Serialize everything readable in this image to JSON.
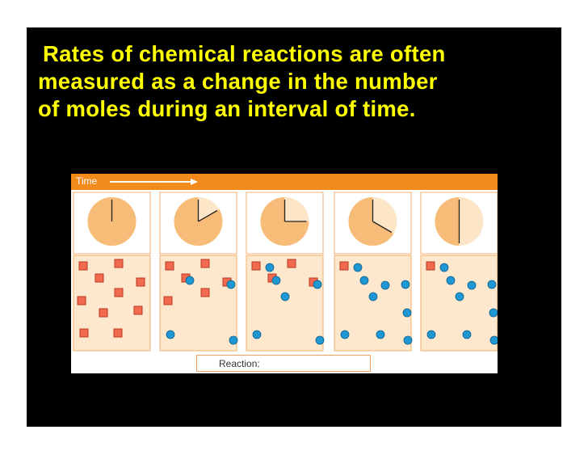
{
  "title_lines": [
    "Rates of chemical reactions are often",
    "measured as a change in the number",
    "of moles during an interval of time."
  ],
  "figure": {
    "time_label": "Time",
    "legend_label": "Reaction:",
    "colors": {
      "bar": "#f28a1c",
      "clock_face": "#f7bd78",
      "clock_light": "#fce6c7",
      "panel_bg": "#fde8cd",
      "reactant_fill": "#f26a4f",
      "reactant_stroke": "#b83a20",
      "product_fill": "#1f97d2",
      "product_stroke": "#0d5f8f"
    },
    "steps": [
      {
        "hand_minutes": 0,
        "elapsed_fraction": 0.0,
        "reactants": 10,
        "products": 0
      },
      {
        "hand_minutes": 10,
        "elapsed_fraction": 0.167,
        "reactants": 6,
        "products": 4
      },
      {
        "hand_minutes": 15,
        "elapsed_fraction": 0.25,
        "reactants": 4,
        "products": 6
      },
      {
        "hand_minutes": 20,
        "elapsed_fraction": 0.333,
        "reactants": 1,
        "products": 9
      },
      {
        "hand_minutes": 30,
        "elapsed_fraction": 0.5,
        "reactants": 1,
        "products": 9
      }
    ]
  }
}
